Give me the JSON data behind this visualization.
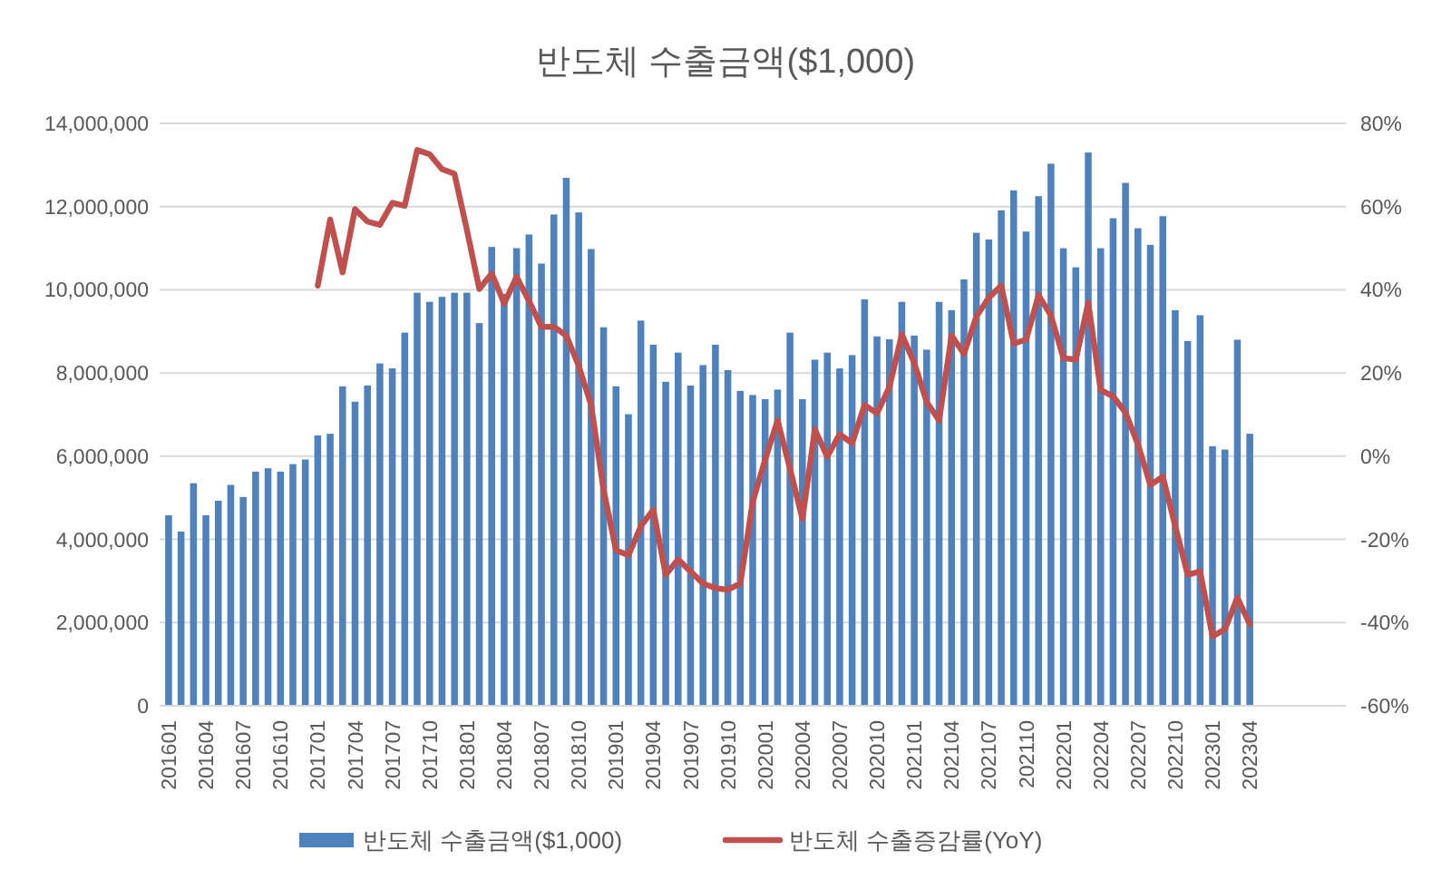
{
  "chart_data": {
    "type": "bar",
    "title": "반도체 수출금액($1,000)",
    "categories": [
      "201601",
      null,
      null,
      "201604",
      null,
      null,
      "201607",
      null,
      null,
      "201610",
      null,
      null,
      "201701",
      null,
      null,
      "201704",
      null,
      null,
      "201707",
      null,
      null,
      "201710",
      null,
      null,
      "201801",
      null,
      null,
      "201804",
      null,
      null,
      "201807",
      null,
      null,
      "201810",
      null,
      null,
      "201901",
      null,
      null,
      "201904",
      null,
      null,
      "201907",
      null,
      null,
      "201910",
      null,
      null,
      "202001",
      null,
      null,
      "202004",
      null,
      null,
      "202007",
      null,
      null,
      "202010",
      null,
      null,
      "202101",
      null,
      null,
      "202104",
      null,
      null,
      "202107",
      null,
      null,
      "202110",
      null,
      null,
      "202201",
      null,
      null,
      "202204",
      null,
      null,
      "202207",
      null,
      null,
      "202210",
      null,
      null,
      "202301",
      null,
      null,
      "202304",
      null,
      null,
      null,
      null,
      null,
      null,
      null
    ],
    "series": [
      {
        "name": "반도체 수출금액($1,000)",
        "color": "#4f81bd",
        "values": [
          4580000,
          4190000,
          5350000,
          4580000,
          4930000,
          5310000,
          5020000,
          5630000,
          5710000,
          5630000,
          5810000,
          5920000,
          6500000,
          6540000,
          7680000,
          7310000,
          7700000,
          8230000,
          8110000,
          8970000,
          9930000,
          9710000,
          9830000,
          9930000,
          9930000,
          9200000,
          11030000,
          9900000,
          11000000,
          11330000,
          10630000,
          11810000,
          12690000,
          11860000,
          10980000,
          9100000,
          7680000,
          7010000,
          9260000,
          8680000,
          7790000,
          8490000,
          7700000,
          8190000,
          8680000,
          8070000,
          7570000,
          7470000,
          7370000,
          7600000,
          8970000,
          7370000,
          8320000,
          8490000,
          8110000,
          8430000,
          9770000,
          8880000,
          8810000,
          9710000,
          8900000,
          8560000,
          9710000,
          9510000,
          10250000,
          11370000,
          11210000,
          11910000,
          12390000,
          11400000,
          12250000,
          13030000,
          11000000,
          10540000,
          13300000,
          11000000,
          11720000,
          12570000,
          11480000,
          11080000,
          11770000,
          9510000,
          8770000,
          9390000,
          6240000,
          6160000,
          8800000,
          6540000,
          null,
          null,
          null,
          null,
          null,
          null,
          null
        ]
      },
      {
        "name": "반도체 수출증감률(YoY)",
        "type": "line",
        "axis": "y2",
        "color": "#c0504d",
        "values": [
          null,
          null,
          null,
          null,
          null,
          null,
          null,
          null,
          null,
          null,
          null,
          null,
          41,
          56.9,
          44.2,
          59.4,
          56.4,
          55.6,
          60.9,
          60.2,
          73.6,
          72.6,
          69,
          67.9,
          54.4,
          40.2,
          43.9,
          36.7,
          43.1,
          37.3,
          31.1,
          31.1,
          29,
          21.7,
          12.3,
          -8.1,
          -22.6,
          -23.8,
          -16.8,
          -12.9,
          -28.5,
          -24.8,
          -27.7,
          -30.6,
          -31.7,
          -32.1,
          -30.6,
          -11,
          -0.8,
          8.6,
          -3,
          -15.1,
          6.4,
          -0.1,
          5.3,
          3.1,
          12.3,
          10.3,
          16.6,
          29.3,
          22.4,
          13,
          8.6,
          29,
          24.6,
          33.6,
          38.1,
          41,
          27.1,
          28,
          38.7,
          33.8,
          23.6,
          23.2,
          36.9,
          15.9,
          14.4,
          10.5,
          2.8,
          -6.9,
          -4.9,
          -16.8,
          -28.5,
          -27.7,
          -43.3,
          -41.6,
          -34,
          -40.4,
          null,
          null,
          null,
          null,
          null,
          null,
          null
        ]
      }
    ],
    "ylim": [
      0,
      14000000
    ],
    "yticks": [
      {
        "value": 0,
        "label": "0"
      },
      {
        "value": 2000000,
        "label": "2,000,000"
      },
      {
        "value": 4000000,
        "label": "4,000,000"
      },
      {
        "value": 6000000,
        "label": "6,000,000"
      },
      {
        "value": 8000000,
        "label": "8,000,000"
      },
      {
        "value": 10000000,
        "label": "10,000,000"
      },
      {
        "value": 12000000,
        "label": "12,000,000"
      },
      {
        "value": 14000000,
        "label": "14,000,000"
      }
    ],
    "y2lim": [
      -60,
      80
    ],
    "y2ticks": [
      {
        "value": -60,
        "label": "-60%"
      },
      {
        "value": -40,
        "label": "-40%"
      },
      {
        "value": -20,
        "label": "-20%"
      },
      {
        "value": 0,
        "label": "0%"
      },
      {
        "value": 20,
        "label": "20%"
      },
      {
        "value": 40,
        "label": "40%"
      },
      {
        "value": 60,
        "label": "60%"
      },
      {
        "value": 80,
        "label": "80%"
      }
    ],
    "grid": "y",
    "legend": "bottom",
    "marker": "none",
    "line_style": "solid"
  }
}
